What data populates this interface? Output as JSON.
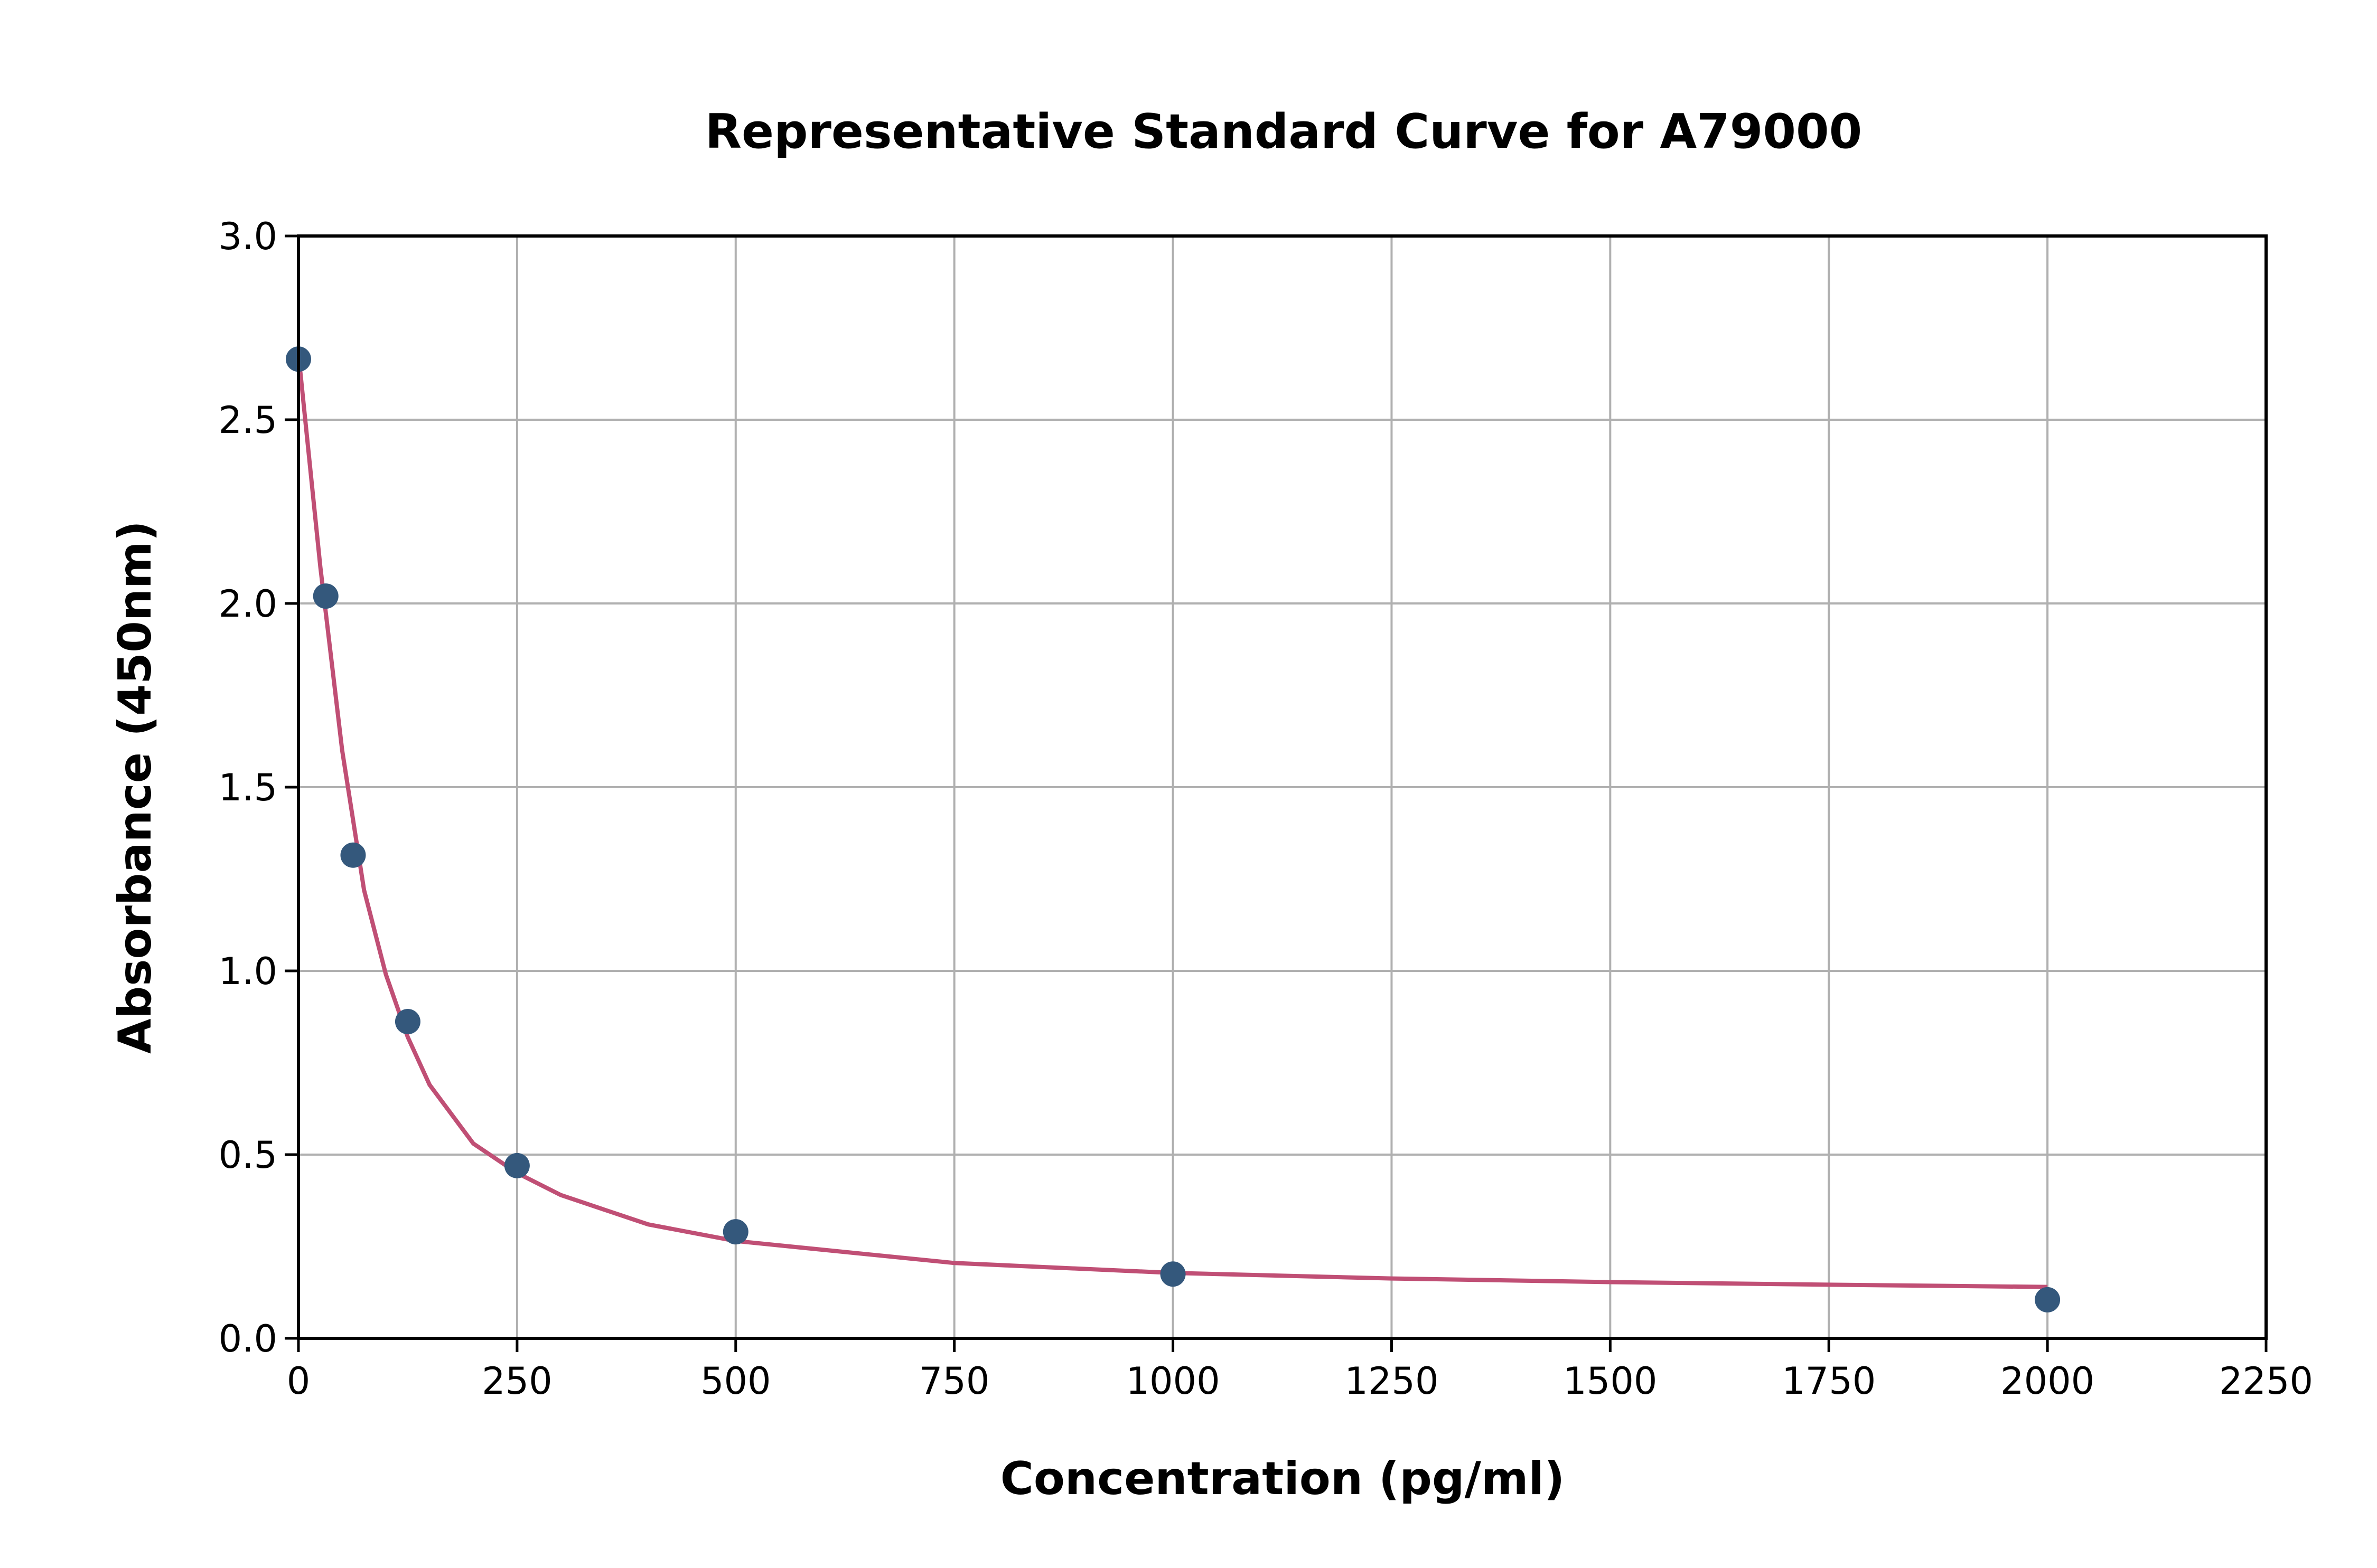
{
  "chart_data": {
    "type": "scatter",
    "title": "Representative Standard Curve for A79000",
    "xlabel": "Concentration (pg/ml)",
    "ylabel": "Absorbance (450nm)",
    "xlim": [
      0,
      2250
    ],
    "ylim": [
      0,
      3.0
    ],
    "xticks": [
      "0",
      "250",
      "500",
      "750",
      "1000",
      "1250",
      "1500",
      "1750",
      "2000",
      "2250"
    ],
    "yticks": [
      "0.0",
      "0.5",
      "1.0",
      "1.5",
      "2.0",
      "2.5",
      "3.0"
    ],
    "grid": true,
    "points": {
      "x": [
        0,
        31.25,
        62.5,
        125,
        250,
        500,
        1000,
        2000
      ],
      "y": [
        2.665,
        2.02,
        1.315,
        0.862,
        0.47,
        0.29,
        0.175,
        0.105
      ],
      "color": "#34587c"
    },
    "fit_curve": {
      "x": [
        0,
        25,
        50,
        75,
        100,
        125,
        150,
        200,
        250,
        300,
        400,
        500,
        750,
        1000,
        1250,
        1500,
        1750,
        2000
      ],
      "y": [
        2.68,
        2.1,
        1.6,
        1.22,
        0.99,
        0.82,
        0.69,
        0.53,
        0.45,
        0.39,
        0.31,
        0.265,
        0.205,
        0.178,
        0.163,
        0.153,
        0.146,
        0.14
      ],
      "color": "#c04f75"
    }
  }
}
